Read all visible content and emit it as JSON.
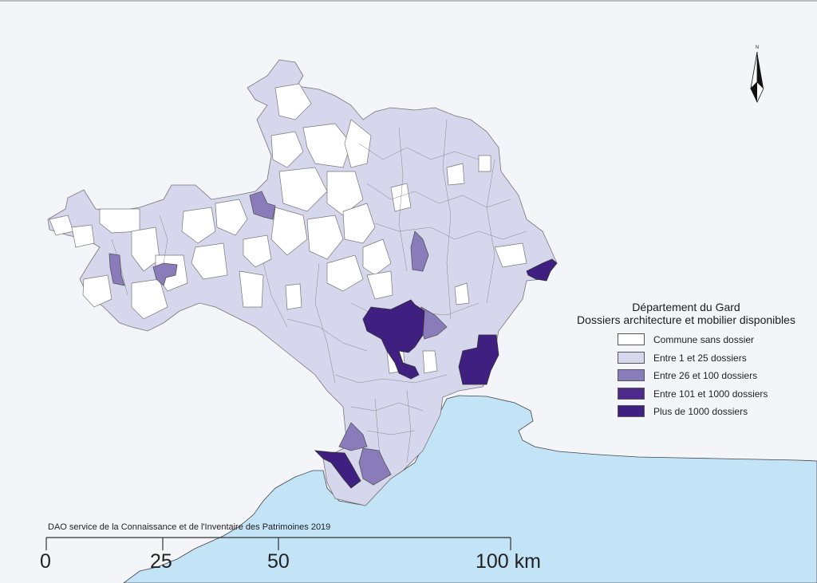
{
  "legend": {
    "title_line1": "Département du Gard",
    "title_line2": "Dossiers architecture et mobilier disponibles",
    "items": [
      {
        "label": "Commune sans dossier",
        "color": "#ffffff"
      },
      {
        "label": "Entre 1 et 25 dossiers",
        "color": "#d6d6ec"
      },
      {
        "label": "Entre 26 et 100 dossiers",
        "color": "#8a7bbb"
      },
      {
        "label": "Entre 101 et 1000 dossiers",
        "color": "#4e2a8c"
      },
      {
        "label": "Plus de 1000 dossiers",
        "color": "#3f1f80"
      }
    ]
  },
  "credit": "DAO service de la Connaissance et de l'Inventaire des Patrimoines 2019",
  "scale": {
    "labels": [
      "0",
      "25",
      "50",
      "100 km"
    ]
  },
  "compass": {
    "label": "N"
  },
  "colors": {
    "sea": "#c3e3f7",
    "land": "#f3f5f9",
    "border": "#666666"
  }
}
